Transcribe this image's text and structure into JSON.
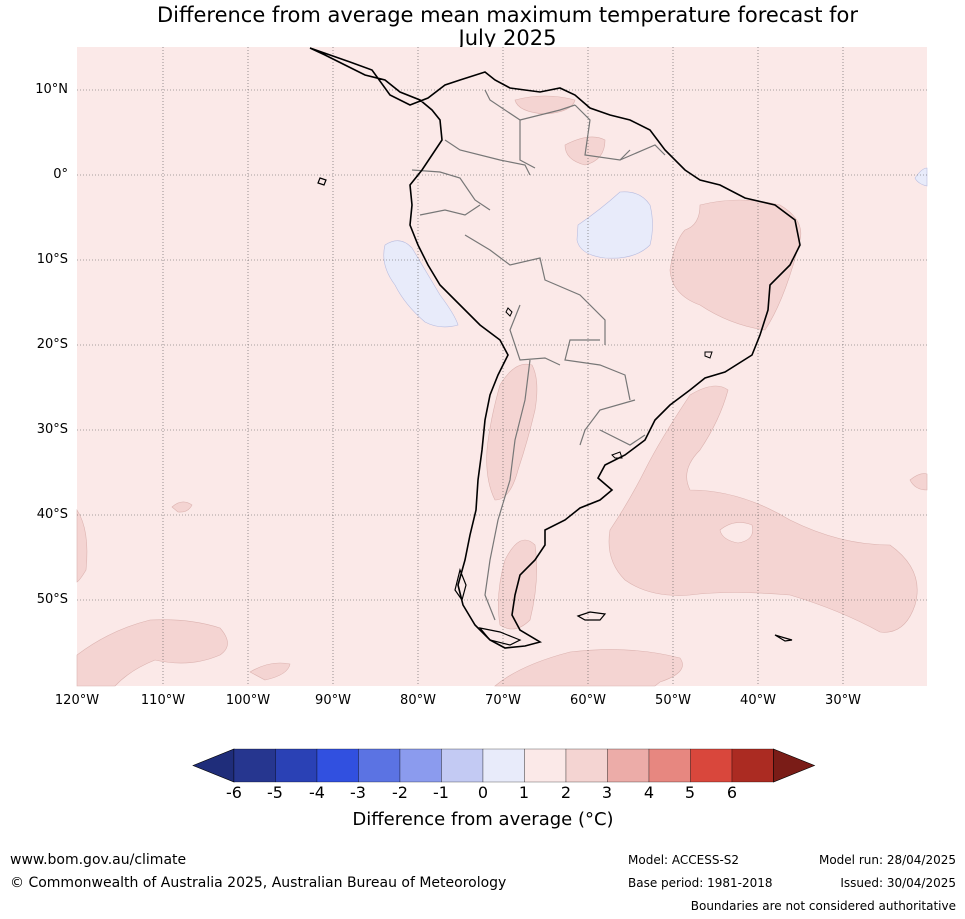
{
  "title": {
    "line1": "Difference from average mean maximum temperature forecast for",
    "line2": "July 2025"
  },
  "map": {
    "background_color": "#fbe9e8",
    "latitude_labels": [
      "10°N",
      "0°",
      "10°S",
      "20°S",
      "30°S",
      "40°S",
      "50°S"
    ],
    "longitude_labels": [
      "120°W",
      "110°W",
      "100°W",
      "90°W",
      "80°W",
      "70°W",
      "60°W",
      "50°W",
      "40°W",
      "30°W"
    ]
  },
  "colorbar": {
    "tick_labels": [
      "-6",
      "-5",
      "-4",
      "-3",
      "-2",
      "-1",
      "0",
      "1",
      "2",
      "3",
      "4",
      "5",
      "6"
    ],
    "colors": [
      "#26368f",
      "#2a41b5",
      "#3150e0",
      "#5b73e3",
      "#8b9bee",
      "#c3caf3",
      "#e8ebfa",
      "#fbe9e8",
      "#f4d4d2",
      "#ecaca8",
      "#e78780",
      "#d9473c",
      "#ab2b22"
    ],
    "end_low_color": "#1f2d7a",
    "end_high_color": "#7a1c17",
    "title": "Difference from average (°C)"
  },
  "footer": {
    "website": "www.bom.gov.au/climate",
    "copyright": "© Commonwealth of Australia 2025, Australian Bureau of Meteorology",
    "model": "Model: ACCESS-S2",
    "base_period": "Base period: 1981-2018",
    "model_run": "Model run: 28/04/2025",
    "issued": "Issued: 30/04/2025",
    "disclaimer": "Boundaries are not considered authoritative"
  }
}
